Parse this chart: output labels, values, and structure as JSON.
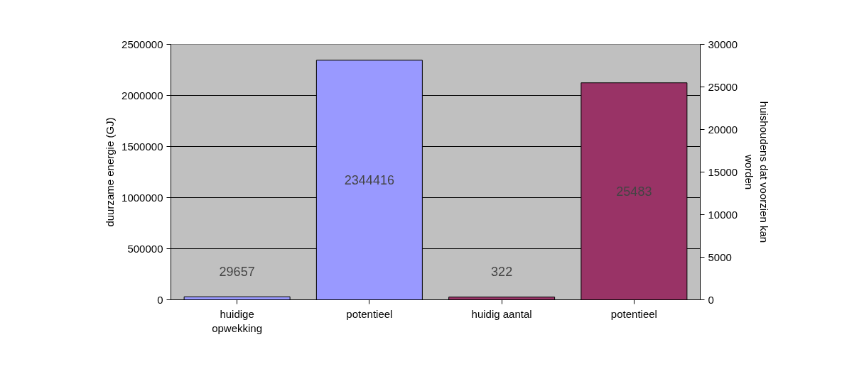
{
  "chart_data": {
    "type": "bar",
    "ylabel": "duurzame energie (GJ)",
    "y2label": "huishoudens dat voorzien kan\nworden",
    "categories": [
      "huidige\nopwekking",
      "potentieel",
      "huidig aantal",
      "potentieel"
    ],
    "series": [
      {
        "color": "#9999ff",
        "values": [
          29657,
          2344416,
          null,
          null
        ]
      },
      {
        "color": "#993366",
        "values": [
          null,
          null,
          322,
          25483
        ],
        "axis": "y2"
      }
    ],
    "ylim": [
      0,
      2500000
    ],
    "yticks": [
      0,
      500000,
      1000000,
      1500000,
      2000000,
      2500000
    ],
    "y2lim": [
      0,
      30000
    ],
    "y2ticks": [
      0,
      5000,
      10000,
      15000,
      20000,
      25000,
      30000
    ],
    "grid": "y",
    "data_labels": true
  }
}
